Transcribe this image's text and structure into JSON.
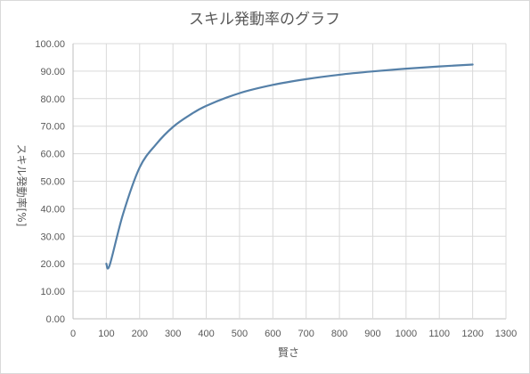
{
  "chart_data": {
    "type": "line",
    "title": "スキル発動率のグラフ",
    "xlabel": "賢さ",
    "ylabel": "スキル発動率[%]",
    "xlim": [
      0,
      1300
    ],
    "ylim": [
      0,
      100
    ],
    "grid": true,
    "legend": "none",
    "line_color": "#5580a8",
    "x_ticks": [
      "0",
      "100",
      "200",
      "300",
      "400",
      "500",
      "600",
      "700",
      "800",
      "900",
      "1000",
      "1100",
      "1200",
      "1300"
    ],
    "y_ticks": [
      "0.00",
      "10.00",
      "20.00",
      "30.00",
      "40.00",
      "50.00",
      "60.00",
      "70.00",
      "80.00",
      "90.00",
      "100.00"
    ],
    "series": [
      {
        "x": [
          100,
          110,
          150,
          200,
          250,
          300,
          350,
          400,
          500,
          600,
          700,
          800,
          900,
          1000,
          1100,
          1200
        ],
        "y": [
          20.0,
          19.5,
          38.0,
          55.0,
          63.5,
          69.7,
          74.0,
          77.4,
          82.0,
          85.0,
          87.1,
          88.7,
          89.9,
          90.9,
          91.7,
          92.4
        ]
      }
    ]
  }
}
